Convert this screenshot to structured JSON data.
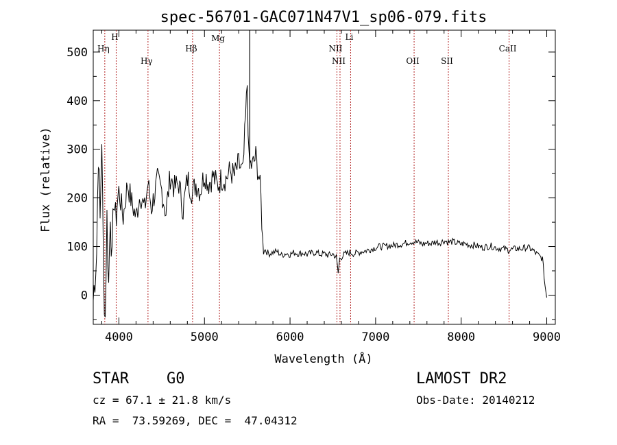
{
  "chart_data": {
    "type": "line",
    "title": "spec-56701-GAC071N47V1_sp06-079.fits",
    "xlabel": "Wavelength (Å)",
    "ylabel": "Flux (relative)",
    "xlim": [
      3700,
      9100
    ],
    "ylim": [
      -60,
      545
    ],
    "xticks": [
      4000,
      5000,
      6000,
      7000,
      8000,
      9000
    ],
    "yticks": [
      0,
      100,
      200,
      300,
      400,
      500
    ],
    "grid": false,
    "series": [
      {
        "color": "#000000",
        "x": [
          3700,
          3740,
          3760,
          3780,
          3800,
          3820,
          3840,
          3860,
          3880,
          3900,
          3920,
          3940,
          3960,
          3980,
          4000,
          4050,
          4100,
          4150,
          4200,
          4250,
          4300,
          4340,
          4380,
          4450,
          4500,
          4550,
          4600,
          4650,
          4700,
          4750,
          4800,
          4861,
          4900,
          4950,
          5000,
          5050,
          5100,
          5150,
          5200,
          5250,
          5300,
          5350,
          5400,
          5450,
          5500,
          5520,
          5560,
          5600,
          5640,
          5660,
          5680,
          5700,
          5750,
          5800,
          5850,
          5900,
          5950,
          6000,
          6050,
          6100,
          6150,
          6200,
          6250,
          6300,
          6350,
          6400,
          6450,
          6500,
          6540,
          6563,
          6580,
          6620,
          6650,
          6700,
          6750,
          6800,
          6850,
          6900,
          6950,
          7000,
          7050,
          7100,
          7150,
          7200,
          7250,
          7300,
          7350,
          7400,
          7450,
          7500,
          7550,
          7600,
          7650,
          7700,
          7750,
          7800,
          7850,
          7900,
          7950,
          8000,
          8050,
          8100,
          8150,
          8200,
          8250,
          8300,
          8350,
          8400,
          8450,
          8500,
          8550,
          8600,
          8650,
          8700,
          8750,
          8800,
          8850,
          8900,
          8950,
          8980,
          9000
        ],
        "y": [
          -10,
          90,
          300,
          150,
          330,
          40,
          -45,
          160,
          20,
          180,
          60,
          210,
          150,
          190,
          215,
          160,
          230,
          190,
          160,
          210,
          175,
          230,
          180,
          235,
          215,
          170,
          245,
          220,
          230,
          175,
          240,
          210,
          230,
          215,
          250,
          230,
          245,
          225,
          240,
          240,
          255,
          245,
          270,
          250,
          435,
          270,
          265,
          285,
          240,
          200,
          110,
          95,
          85,
          88,
          90,
          82,
          86,
          84,
          88,
          85,
          87,
          84,
          86,
          88,
          84,
          85,
          82,
          85,
          78,
          45,
          75,
          82,
          85,
          88,
          85,
          88,
          90,
          92,
          95,
          98,
          100,
          100,
          102,
          102,
          104,
          105,
          107,
          110,
          110,
          108,
          105,
          107,
          106,
          110,
          108,
          112,
          109,
          110,
          107,
          105,
          106,
          103,
          103,
          100,
          98,
          100,
          101,
          98,
          96,
          95,
          93,
          94,
          96,
          95,
          98,
          97,
          90,
          82,
          75,
          20,
          -5
        ]
      }
    ],
    "lines": [
      {
        "label": "Hη",
        "x": 3835
      },
      {
        "label": "H",
        "x": 3968
      },
      {
        "label": "Hγ",
        "x": 4340
      },
      {
        "label": "Hβ",
        "x": 4861
      },
      {
        "label": "Mg",
        "x": 5175
      },
      {
        "label": "NII",
        "x": 6548
      },
      {
        "label": "NII",
        "x": 6584
      },
      {
        "label": "Li",
        "x": 6708
      },
      {
        "label": "OII",
        "x": 7450
      },
      {
        "label": "SII",
        "x": 7850
      },
      {
        "label": "CaII",
        "x": 8560
      }
    ],
    "spike": {
      "x": 5530,
      "y": 545
    }
  },
  "footer": {
    "class": "STAR",
    "subclass": "G0",
    "survey": "LAMOST DR2",
    "redshift": "cz = 67.1 ± 21.8 km/s",
    "obs_date": "Obs-Date: 20140212",
    "coords": "RA =  73.59269, DEC =  47.04312"
  }
}
